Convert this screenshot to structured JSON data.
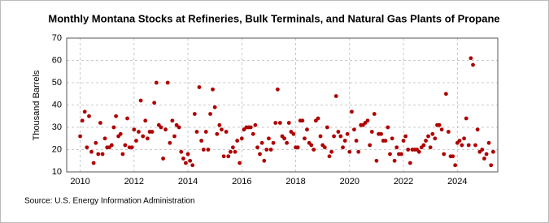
{
  "chart_data": {
    "type": "scatter",
    "title": "Monthly Montana Stocks at Refineries, Bulk Terminals, and Natural Gas Plants of Propane",
    "y_label": "Thousand Barrels",
    "source": "Source: U.S. Energy Information Administration",
    "color": "#b00000",
    "grid": true,
    "xlim": [
      2009.5,
      2025.5
    ],
    "ylim": [
      10,
      70
    ],
    "xticks": [
      2010,
      2012,
      2014,
      2016,
      2018,
      2020,
      2022,
      2024
    ],
    "yticks": [
      10,
      20,
      30,
      40,
      50,
      60,
      70
    ],
    "x": [
      2010.0,
      2010.08,
      2010.17,
      2010.25,
      2010.33,
      2010.42,
      2010.5,
      2010.58,
      2010.67,
      2010.75,
      2010.83,
      2010.92,
      2011.0,
      2011.08,
      2011.17,
      2011.25,
      2011.33,
      2011.42,
      2011.5,
      2011.58,
      2011.67,
      2011.75,
      2011.83,
      2011.92,
      2012.0,
      2012.08,
      2012.17,
      2012.25,
      2012.33,
      2012.42,
      2012.5,
      2012.58,
      2012.67,
      2012.75,
      2012.83,
      2012.92,
      2013.0,
      2013.08,
      2013.17,
      2013.25,
      2013.33,
      2013.42,
      2013.5,
      2013.58,
      2013.67,
      2013.75,
      2013.83,
      2013.92,
      2014.0,
      2014.08,
      2014.17,
      2014.25,
      2014.33,
      2014.42,
      2014.5,
      2014.58,
      2014.67,
      2014.75,
      2014.83,
      2014.92,
      2015.0,
      2015.08,
      2015.17,
      2015.25,
      2015.33,
      2015.42,
      2015.5,
      2015.58,
      2015.67,
      2015.75,
      2015.83,
      2015.92,
      2016.0,
      2016.08,
      2016.17,
      2016.25,
      2016.33,
      2016.42,
      2016.5,
      2016.58,
      2016.67,
      2016.75,
      2016.83,
      2016.92,
      2017.0,
      2017.08,
      2017.17,
      2017.25,
      2017.33,
      2017.42,
      2017.5,
      2017.58,
      2017.67,
      2017.75,
      2017.83,
      2017.92,
      2018.0,
      2018.08,
      2018.17,
      2018.25,
      2018.33,
      2018.42,
      2018.5,
      2018.58,
      2018.67,
      2018.75,
      2018.83,
      2018.92,
      2019.0,
      2019.08,
      2019.17,
      2019.25,
      2019.33,
      2019.42,
      2019.5,
      2019.58,
      2019.67,
      2019.75,
      2019.83,
      2019.92,
      2020.0,
      2020.08,
      2020.17,
      2020.25,
      2020.33,
      2020.42,
      2020.5,
      2020.58,
      2020.67,
      2020.75,
      2020.83,
      2020.92,
      2021.0,
      2021.08,
      2021.17,
      2021.25,
      2021.33,
      2021.42,
      2021.5,
      2021.58,
      2021.67,
      2021.75,
      2021.83,
      2021.92,
      2022.0,
      2022.08,
      2022.17,
      2022.25,
      2022.33,
      2022.42,
      2022.5,
      2022.58,
      2022.67,
      2022.75,
      2022.83,
      2022.92,
      2023.0,
      2023.08,
      2023.17,
      2023.25,
      2023.33,
      2023.42,
      2023.5,
      2023.58,
      2023.67,
      2023.75,
      2023.83,
      2023.92,
      2024.0,
      2024.08,
      2024.17,
      2024.25,
      2024.33,
      2024.42,
      2024.5,
      2024.58,
      2024.67,
      2024.75,
      2024.83,
      2024.92,
      2025.0,
      2025.08,
      2025.17,
      2025.25,
      2025.33
    ],
    "values": [
      26,
      33,
      37,
      21,
      35,
      19,
      14,
      23,
      18,
      32,
      18,
      25,
      21,
      21,
      22,
      30,
      35,
      26,
      27,
      18,
      22,
      34,
      21,
      21,
      29,
      24,
      28,
      42,
      26,
      33,
      25,
      28,
      28,
      41,
      50,
      31,
      30,
      16,
      29,
      50,
      23,
      33,
      26,
      31,
      30,
      19,
      16,
      14,
      18,
      15,
      13,
      36,
      28,
      48,
      24,
      20,
      28,
      20,
      36,
      47,
      39,
      27,
      31,
      29,
      17,
      28,
      17,
      19,
      21,
      19,
      24,
      14,
      25,
      29,
      30,
      30,
      30,
      27,
      31,
      21,
      18,
      23,
      15,
      20,
      25,
      20,
      23,
      32,
      47,
      32,
      26,
      25,
      23,
      32,
      28,
      27,
      21,
      21,
      33,
      33,
      25,
      29,
      23,
      22,
      20,
      33,
      34,
      26,
      22,
      21,
      30,
      17,
      19,
      26,
      44,
      28,
      26,
      21,
      24,
      27,
      19,
      37,
      29,
      24,
      19,
      31,
      31,
      32,
      33,
      22,
      28,
      36,
      15,
      27,
      27,
      24,
      24,
      30,
      18,
      25,
      15,
      21,
      18,
      18,
      24,
      26,
      20,
      14,
      20,
      20,
      20,
      19,
      21,
      22,
      24,
      26,
      21,
      27,
      25,
      31,
      31,
      29,
      18,
      45,
      28,
      17,
      17,
      13,
      23,
      24,
      22,
      25,
      34,
      22,
      61,
      58,
      22,
      29,
      19,
      20,
      16,
      18,
      23,
      13,
      19
    ]
  }
}
